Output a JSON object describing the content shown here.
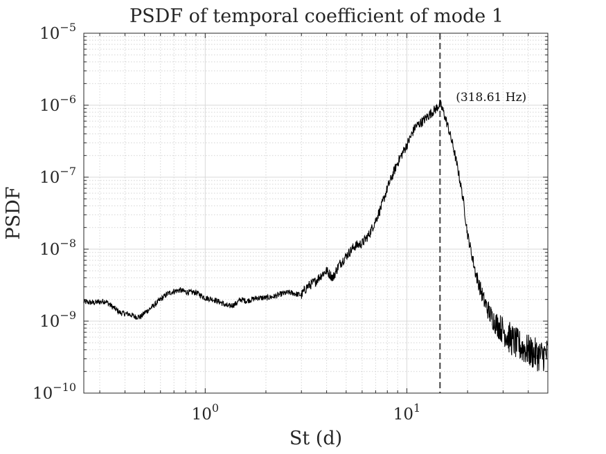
{
  "chart_data": {
    "type": "line",
    "title": "PSDF of temporal coefficient of mode 1",
    "xlabel": "St (d)",
    "ylabel": "PSDF",
    "xscale": "log",
    "yscale": "log",
    "xlim": [
      0.25,
      50
    ],
    "ylim": [
      1e-10,
      1e-05
    ],
    "grid": true,
    "x_ticks": [
      {
        "value": 1,
        "base": "10",
        "exp": "0"
      },
      {
        "value": 10,
        "base": "10",
        "exp": "1"
      }
    ],
    "y_ticks": [
      {
        "value": 1e-10,
        "base": "10",
        "exp": "−10"
      },
      {
        "value": 1e-09,
        "base": "10",
        "exp": "−9"
      },
      {
        "value": 1e-08,
        "base": "10",
        "exp": "−8"
      },
      {
        "value": 1e-07,
        "base": "10",
        "exp": "−7"
      },
      {
        "value": 1e-06,
        "base": "10",
        "exp": "−6"
      },
      {
        "value": 1e-05,
        "base": "10",
        "exp": "−5"
      }
    ],
    "peak_line": {
      "x": 14.6,
      "style": "dashed"
    },
    "annotation": {
      "text": "(318.61 Hz)",
      "x": 17.5,
      "y": 1.3e-06
    },
    "series": [
      {
        "name": "PSDF",
        "color": "#000000",
        "x": [
          0.25,
          0.28,
          0.32,
          0.35,
          0.38,
          0.42,
          0.45,
          0.48,
          0.5,
          0.55,
          0.6,
          0.65,
          0.7,
          0.75,
          0.8,
          0.85,
          0.9,
          1.0,
          1.1,
          1.2,
          1.3,
          1.4,
          1.5,
          1.6,
          1.8,
          2.0,
          2.2,
          2.4,
          2.6,
          2.8,
          3.0,
          3.2,
          3.5,
          3.8,
          4.0,
          4.3,
          4.6,
          5.0,
          5.5,
          6.0,
          6.5,
          7.0,
          7.5,
          8.0,
          9.0,
          10.0,
          11.0,
          12.0,
          13.0,
          14.0,
          14.6,
          15.2,
          16.0,
          17.0,
          18.0,
          19.0,
          20.0,
          22.0,
          24.0,
          26.0,
          28.0,
          30.0,
          32.0,
          35.0,
          38.0,
          42.0,
          46.0,
          50.0
        ],
        "y": [
          1.85e-09,
          1.8e-09,
          1.9e-09,
          1.55e-09,
          1.3e-09,
          1.25e-09,
          1.15e-09,
          1.15e-09,
          1.3e-09,
          1.6e-09,
          2e-09,
          2.4e-09,
          2.6e-09,
          2.7e-09,
          2.55e-09,
          2.5e-09,
          2.5e-09,
          2.1e-09,
          2e-09,
          1.8e-09,
          1.6e-09,
          1.7e-09,
          2e-09,
          1.9e-09,
          2.1e-09,
          2.1e-09,
          2.2e-09,
          2.4e-09,
          2.5e-09,
          2.4e-09,
          2.3e-09,
          3e-09,
          3.5e-09,
          4.5e-09,
          5e-09,
          4e-09,
          6e-09,
          8e-09,
          1.1e-08,
          1.2e-08,
          1.6e-08,
          2.5e-08,
          4e-08,
          7e-08,
          1.6e-07,
          2.8e-07,
          5e-07,
          6e-07,
          7.5e-07,
          9e-07,
          1.05e-06,
          8e-07,
          5e-07,
          2.6e-07,
          1.2e-07,
          5e-08,
          1.6e-08,
          4.5e-09,
          2e-09,
          1.2e-09,
          9e-10,
          7.5e-10,
          6e-10,
          4.8e-10,
          4.2e-10,
          3.6e-10,
          3.3e-10,
          3.5e-10
        ]
      }
    ]
  }
}
